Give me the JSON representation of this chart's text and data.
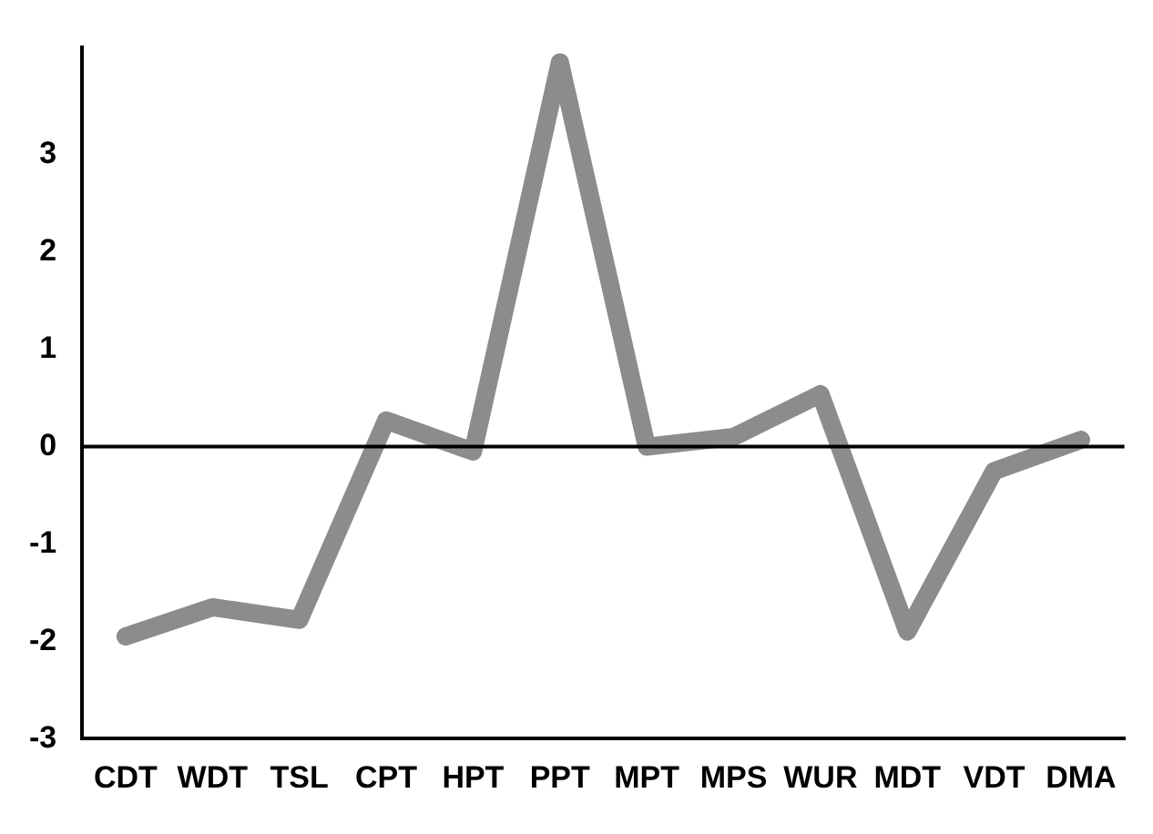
{
  "chart_data": {
    "type": "line",
    "categories": [
      "CDT",
      "WDT",
      "TSL",
      "CPT",
      "HPT",
      "PPT",
      "MPT",
      "MPS",
      "WUR",
      "MDT",
      "VDT",
      "DMA"
    ],
    "series": [
      {
        "color": "#8c8c8c",
        "values": [
          -1.95,
          -1.65,
          -1.78,
          0.27,
          -0.05,
          3.95,
          0,
          0.1,
          0.54,
          -1.9,
          -0.25,
          0.07
        ]
      }
    ],
    "ylim": [
      -3,
      4.1
    ],
    "yticks": [
      -3,
      -2,
      -1,
      0,
      1,
      2,
      3
    ],
    "ref_lines": [
      {
        "axis": "y",
        "value": 0,
        "color": "#000000"
      }
    ],
    "grid": false,
    "legend": false,
    "marker": "none",
    "line_style": "solid"
  }
}
